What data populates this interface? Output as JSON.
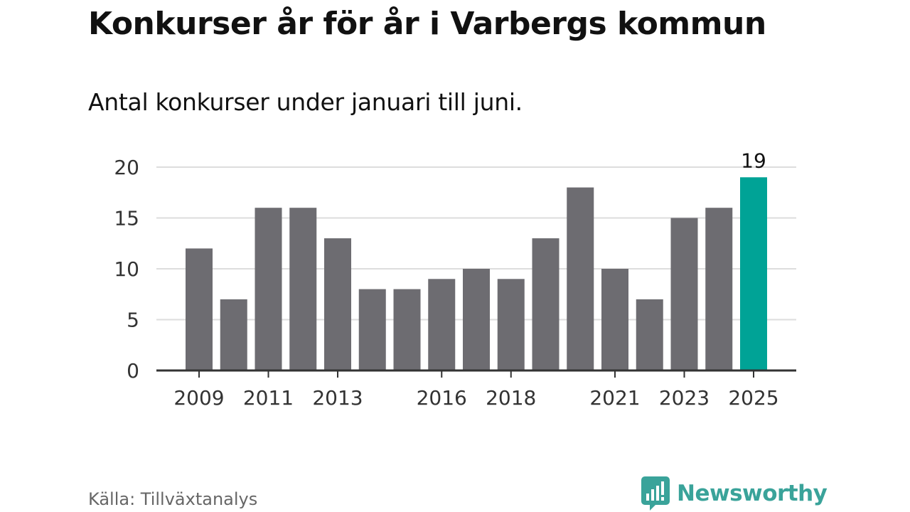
{
  "title": "Konkurser år för år i Varbergs kommun",
  "subtitle": "Antal konkurser under januari till juni.",
  "source": "Källa: Tillväxtanalys",
  "logo": {
    "text": "Newsworthy",
    "color": "#3aa39a",
    "icon": "bar-chart-speech-bubble-icon"
  },
  "colors": {
    "bar": "#6d6c71",
    "highlight": "#00a396",
    "grid": "#dddddd",
    "axis": "#333333"
  },
  "chart_data": {
    "type": "bar",
    "categories": [
      "2009",
      "2010",
      "2011",
      "2012",
      "2013",
      "2014",
      "2015",
      "2016",
      "2017",
      "2018",
      "2019",
      "2020",
      "2021",
      "2022",
      "2023",
      "2024",
      "2025"
    ],
    "values": [
      12,
      7,
      16,
      16,
      13,
      8,
      8,
      9,
      10,
      9,
      13,
      18,
      10,
      7,
      15,
      16,
      19
    ],
    "x_tick_labels": [
      "2009",
      "2011",
      "2013",
      "2016",
      "2018",
      "2021",
      "2023",
      "2025"
    ],
    "y_ticks": [
      0,
      5,
      10,
      15,
      20
    ],
    "ylim": [
      0,
      20
    ],
    "highlight": {
      "category": "2025",
      "label": "19"
    },
    "xlabel": "",
    "ylabel": "",
    "grid": true,
    "legend": "none"
  }
}
